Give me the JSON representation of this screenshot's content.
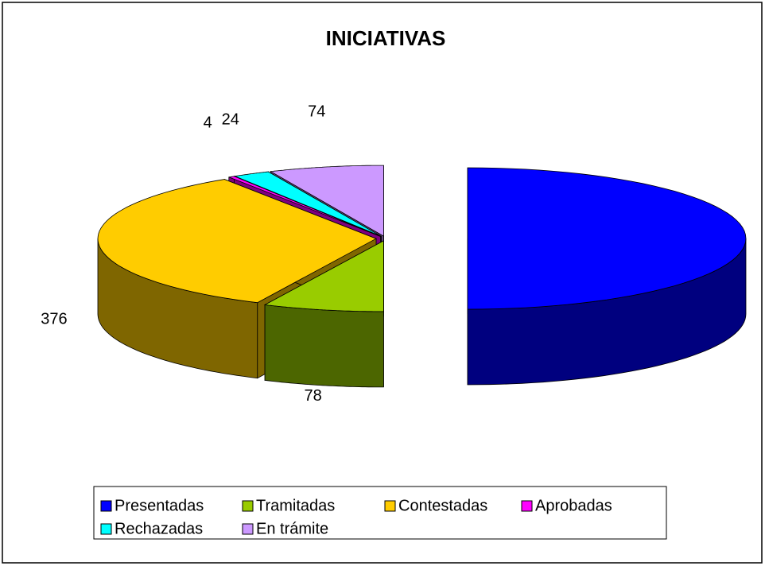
{
  "chart_data": {
    "type": "pie3d",
    "title": "INICIATIVAS",
    "categories": [
      "Presentadas",
      "Tramitadas",
      "Contestadas",
      "Aprobadas",
      "Rechazadas",
      "En trámite"
    ],
    "values": [
      556,
      78,
      376,
      4,
      24,
      74
    ],
    "colors": [
      "#0000ff",
      "#99cc00",
      "#ffcc00",
      "#ff00ff",
      "#00ffff",
      "#cc99ff"
    ],
    "legend": "bottom"
  }
}
